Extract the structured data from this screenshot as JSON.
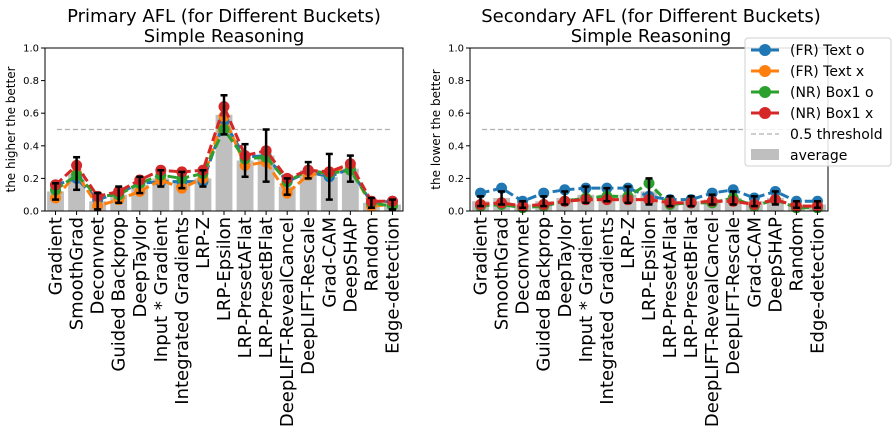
{
  "chart_data": [
    {
      "type": "line",
      "title": "Primary AFL (for Different Buckets)",
      "subtitle": "Simple Reasoning",
      "ylabel": "the higher the better",
      "ylim": [
        0,
        1
      ],
      "yticks": [
        "0.0",
        "0.2",
        "0.4",
        "0.6",
        "0.8",
        "1.0"
      ],
      "categories": [
        "Gradient",
        "SmoothGrad",
        "Deconvnet",
        "Guided Backprop",
        "DeepTaylor",
        "Input * Gradient",
        "Integrated Gradients",
        "LRP-Z",
        "LRP-Epsilon",
        "LRP-PresetAFlat",
        "LRP-PresetBFlat",
        "DeepLIFT-RevealCancel",
        "DeepLIFT-Rescale",
        "Grad-CAM",
        "DeepSHAP",
        "Random",
        "Edge-detection"
      ],
      "average": [
        0.12,
        0.23,
        0.06,
        0.1,
        0.16,
        0.2,
        0.19,
        0.2,
        0.59,
        0.31,
        0.34,
        0.15,
        0.25,
        0.21,
        0.26,
        0.05,
        0.04
      ],
      "error": [
        0.05,
        0.1,
        0.05,
        0.05,
        0.05,
        0.05,
        0.05,
        0.05,
        0.12,
        0.1,
        0.16,
        0.05,
        0.05,
        0.14,
        0.08,
        0.03,
        0.03
      ],
      "series": [
        {
          "name": "(FR) Text o",
          "values": [
            0.16,
            0.2,
            0.07,
            0.11,
            0.17,
            0.18,
            0.18,
            0.18,
            0.55,
            0.33,
            0.34,
            0.18,
            0.24,
            0.21,
            0.26,
            0.05,
            0.06
          ]
        },
        {
          "name": "(FR) Text x",
          "values": [
            0.08,
            0.23,
            0.03,
            0.07,
            0.12,
            0.19,
            0.14,
            0.2,
            0.58,
            0.28,
            0.3,
            0.11,
            0.22,
            0.24,
            0.27,
            0.03,
            0.04
          ]
        },
        {
          "name": "(NR) Box1 o",
          "values": [
            0.13,
            0.22,
            0.09,
            0.1,
            0.17,
            0.22,
            0.2,
            0.23,
            0.5,
            0.32,
            0.33,
            0.18,
            0.25,
            0.23,
            0.25,
            0.05,
            0.03
          ]
        },
        {
          "name": "(NR) Box1 x",
          "values": [
            0.16,
            0.28,
            0.09,
            0.12,
            0.19,
            0.25,
            0.24,
            0.25,
            0.64,
            0.34,
            0.37,
            0.2,
            0.25,
            0.24,
            0.29,
            0.06,
            0.06
          ]
        }
      ],
      "threshold": 0.5
    },
    {
      "type": "line",
      "title": "Secondary AFL (for Different Buckets)",
      "subtitle": "Simple Reasoning",
      "ylabel": "the lower the better",
      "ylim": [
        0,
        1
      ],
      "yticks": [
        "0.0",
        "0.2",
        "0.4",
        "0.6",
        "0.8",
        "1.0"
      ],
      "categories": [
        "Gradient",
        "SmoothGrad",
        "Deconvnet",
        "Guided Backprop",
        "DeepTaylor",
        "Input * Gradient",
        "Integrated Gradients",
        "LRP-Z",
        "LRP-Epsilon",
        "LRP-PresetAFlat",
        "LRP-PresetBFlat",
        "DeepLIFT-RevealCancel",
        "DeepLIFT-Rescale",
        "Grad-CAM",
        "DeepSHAP",
        "Random",
        "Edge-detection"
      ],
      "average": [
        0.06,
        0.08,
        0.04,
        0.06,
        0.08,
        0.1,
        0.1,
        0.1,
        0.12,
        0.06,
        0.06,
        0.07,
        0.08,
        0.06,
        0.08,
        0.04,
        0.04
      ],
      "error": [
        0.03,
        0.04,
        0.02,
        0.03,
        0.04,
        0.05,
        0.04,
        0.05,
        0.08,
        0.03,
        0.03,
        0.03,
        0.04,
        0.03,
        0.04,
        0.02,
        0.02
      ],
      "series": [
        {
          "name": "(FR) Text o",
          "values": [
            0.11,
            0.14,
            0.06,
            0.11,
            0.13,
            0.14,
            0.14,
            0.14,
            0.09,
            0.07,
            0.07,
            0.11,
            0.13,
            0.08,
            0.12,
            0.06,
            0.06
          ]
        },
        {
          "name": "(FR) Text x",
          "values": [
            0.04,
            0.05,
            0.03,
            0.04,
            0.06,
            0.07,
            0.07,
            0.07,
            0.07,
            0.05,
            0.05,
            0.06,
            0.06,
            0.04,
            0.07,
            0.03,
            0.03
          ]
        },
        {
          "name": "(NR) Box1 o",
          "values": [
            0.03,
            0.04,
            0.02,
            0.03,
            0.06,
            0.08,
            0.09,
            0.09,
            0.17,
            0.04,
            0.05,
            0.05,
            0.08,
            0.03,
            0.07,
            0.02,
            0.02
          ]
        },
        {
          "name": "(NR) Box1 x",
          "values": [
            0.04,
            0.05,
            0.03,
            0.04,
            0.06,
            0.07,
            0.07,
            0.07,
            0.07,
            0.05,
            0.05,
            0.06,
            0.06,
            0.04,
            0.07,
            0.03,
            0.03
          ]
        }
      ],
      "threshold": 0.5
    }
  ],
  "legend": {
    "placement": "top-right",
    "entries": [
      {
        "label": "(FR) Text o",
        "kind": "line-marker",
        "color": "#1f77b4"
      },
      {
        "label": "(FR) Text x",
        "kind": "line-marker",
        "color": "#ff7f0e"
      },
      {
        "label": "(NR) Box1 o",
        "kind": "line-marker",
        "color": "#2ca02c"
      },
      {
        "label": "(NR) Box1 x",
        "kind": "line-marker",
        "color": "#d62728"
      },
      {
        "label": "0.5 threshold",
        "kind": "dashed",
        "color": "#b0b0b0"
      },
      {
        "label": "average",
        "kind": "bar",
        "color": "#bfbfbf"
      }
    ]
  },
  "colors": {
    "(FR) Text o": "#1f77b4",
    "(FR) Text x": "#ff7f0e",
    "(NR) Box1 o": "#2ca02c",
    "(NR) Box1 x": "#d62728",
    "average": "#bfbfbf",
    "threshold": "#b0b0b0",
    "errorbar": "#000000"
  }
}
